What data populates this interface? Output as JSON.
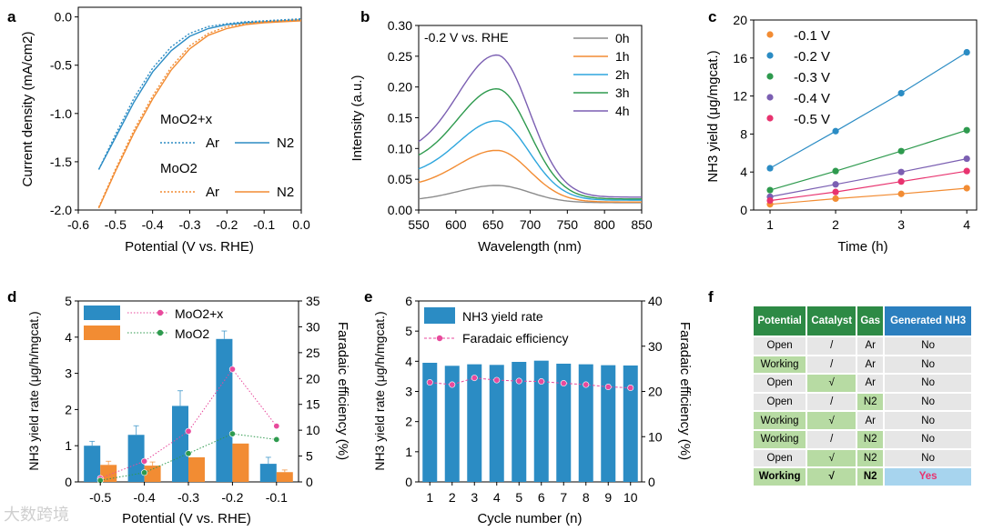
{
  "panel_labels": {
    "a": "a",
    "b": "b",
    "c": "c",
    "d": "d",
    "e": "e",
    "f": "f"
  },
  "chart_data": [
    {
      "panel": "a",
      "type": "line",
      "xlabel": "Potential (V vs. RHE)",
      "ylabel": "Current density (mA/cm2)",
      "xlim": [
        -0.6,
        0.0
      ],
      "ylim": [
        -2.0,
        0.1
      ],
      "xticks": [
        "-0.6",
        "-0.5",
        "-0.4",
        "-0.3",
        "-0.2",
        "-0.1",
        "0.0"
      ],
      "yticks": [
        "0.0",
        "-0.5",
        "-1.0",
        "-1.5",
        "-2.0"
      ],
      "legend": {
        "group1": "MoO2+x",
        "group2": "MoO2",
        "ar": "Ar",
        "n2": "N2"
      },
      "series": [
        {
          "name": "MoO2+x Ar",
          "color": "#2b8cc4",
          "dash": true,
          "x": [
            -0.545,
            -0.5,
            -0.45,
            -0.4,
            -0.35,
            -0.3,
            -0.25,
            -0.2,
            -0.15,
            -0.1,
            -0.05,
            0.0
          ],
          "y": [
            -1.58,
            -1.22,
            -0.84,
            -0.53,
            -0.31,
            -0.17,
            -0.1,
            -0.07,
            -0.05,
            -0.04,
            -0.03,
            -0.02
          ]
        },
        {
          "name": "MoO2+x N2",
          "color": "#2b8cc4",
          "dash": false,
          "x": [
            -0.545,
            -0.5,
            -0.45,
            -0.4,
            -0.35,
            -0.3,
            -0.25,
            -0.2,
            -0.15,
            -0.1,
            -0.05,
            0.0
          ],
          "y": [
            -1.58,
            -1.25,
            -0.88,
            -0.57,
            -0.35,
            -0.2,
            -0.12,
            -0.08,
            -0.06,
            -0.05,
            -0.04,
            -0.03
          ]
        },
        {
          "name": "MoO2 Ar",
          "color": "#f28c33",
          "dash": true,
          "x": [
            -0.545,
            -0.5,
            -0.45,
            -0.4,
            -0.35,
            -0.3,
            -0.25,
            -0.2,
            -0.15,
            -0.1,
            -0.05,
            0.0
          ],
          "y": [
            -1.97,
            -1.58,
            -1.17,
            -0.82,
            -0.52,
            -0.3,
            -0.17,
            -0.1,
            -0.07,
            -0.05,
            -0.04,
            -0.03
          ]
        },
        {
          "name": "MoO2 N2",
          "color": "#f28c33",
          "dash": false,
          "x": [
            -0.545,
            -0.5,
            -0.45,
            -0.4,
            -0.35,
            -0.3,
            -0.25,
            -0.2,
            -0.15,
            -0.1,
            -0.05,
            0.0
          ],
          "y": [
            -1.98,
            -1.6,
            -1.2,
            -0.85,
            -0.55,
            -0.33,
            -0.19,
            -0.12,
            -0.08,
            -0.06,
            -0.05,
            -0.04
          ]
        }
      ]
    },
    {
      "panel": "b",
      "type": "line",
      "annotation": "-0.2 V vs. RHE",
      "xlabel": "Wavelength (nm)",
      "ylabel": "Intensity (a.u.)",
      "xlim": [
        550,
        850
      ],
      "ylim": [
        0.0,
        0.3
      ],
      "xticks": [
        "550",
        "600",
        "650",
        "700",
        "750",
        "800",
        "850"
      ],
      "yticks": [
        "0.00",
        "0.05",
        "0.10",
        "0.15",
        "0.20",
        "0.25",
        "0.30"
      ],
      "series": [
        {
          "name": "0h",
          "color": "#8c8c8c",
          "peak": 0.04,
          "base": 0.015,
          "end": 0.012
        },
        {
          "name": "1h",
          "color": "#f28c33",
          "peak": 0.097,
          "base": 0.037,
          "end": 0.013
        },
        {
          "name": "2h",
          "color": "#2ea6dd",
          "peak": 0.145,
          "base": 0.055,
          "end": 0.016
        },
        {
          "name": "3h",
          "color": "#2e9a4e",
          "peak": 0.197,
          "base": 0.073,
          "end": 0.018
        },
        {
          "name": "4h",
          "color": "#7b5fb2",
          "peak": 0.252,
          "base": 0.09,
          "end": 0.021
        }
      ]
    },
    {
      "panel": "c",
      "type": "scatter",
      "xlabel": "Time (h)",
      "ylabel": "NH3 yield (μg/mgcat.)",
      "xlim": [
        0.75,
        4.15
      ],
      "ylim": [
        0,
        20
      ],
      "xticks": [
        "1",
        "2",
        "3",
        "4"
      ],
      "yticks": [
        "0",
        "4",
        "8",
        "12",
        "16",
        "20"
      ],
      "x": [
        1,
        2,
        3,
        4
      ],
      "series": [
        {
          "name": "-0.1 V",
          "color": "#f28c33",
          "values": [
            0.6,
            1.2,
            1.7,
            2.3
          ]
        },
        {
          "name": "-0.2 V",
          "color": "#2b8cc4",
          "values": [
            4.4,
            8.3,
            12.3,
            16.6
          ]
        },
        {
          "name": "-0.3 V",
          "color": "#2e9a4e",
          "values": [
            2.1,
            4.1,
            6.2,
            8.4
          ]
        },
        {
          "name": "-0.4 V",
          "color": "#7b5fb2",
          "values": [
            1.4,
            2.7,
            4.0,
            5.4
          ]
        },
        {
          "name": "-0.5 V",
          "color": "#e8336f",
          "values": [
            1.0,
            1.9,
            3.0,
            4.1
          ]
        }
      ]
    },
    {
      "panel": "d",
      "type": "bar",
      "xlabel": "Potential (V vs. RHE)",
      "ylabel": "NH3 yield rate (μg/h/mgcat.)",
      "y2label": "Faradaic efficiency (%)",
      "categories": [
        "-0.5",
        "-0.4",
        "-0.3",
        "-0.2",
        "-0.1"
      ],
      "ylim": [
        0,
        5
      ],
      "y2lim": [
        0,
        35
      ],
      "yticks": [
        "0",
        "1",
        "2",
        "3",
        "4",
        "5"
      ],
      "y2ticks": [
        "0",
        "5",
        "10",
        "15",
        "20",
        "25",
        "30",
        "35"
      ],
      "series": [
        {
          "name": "MoO2+x",
          "color": "#2b8cc4",
          "fe_color": "#e84a9c",
          "values": [
            1.0,
            1.3,
            2.1,
            3.95,
            0.5
          ],
          "errors": [
            0.12,
            0.25,
            0.42,
            0.22,
            0.18
          ],
          "fe": [
            0.7,
            4.0,
            9.8,
            21.8,
            10.8
          ]
        },
        {
          "name": "MoO2",
          "color": "#f28c33",
          "fe_color": "#2e9a4e",
          "values": [
            0.47,
            0.45,
            0.68,
            1.06,
            0.27
          ],
          "errors": [
            0.1,
            0.1,
            0.0,
            0.0,
            0.06
          ],
          "fe": [
            0.3,
            1.8,
            5.5,
            9.3,
            8.2
          ]
        }
      ]
    },
    {
      "panel": "e",
      "type": "bar",
      "xlabel": "Cycle number (n)",
      "ylabel": "NH3 yield rate (μg/h/mgcat.)",
      "y2label": "Faradaic efficiency (%)",
      "categories": [
        "1",
        "2",
        "3",
        "4",
        "5",
        "6",
        "7",
        "8",
        "9",
        "10"
      ],
      "ylim": [
        0,
        6
      ],
      "y2lim": [
        0,
        40
      ],
      "yticks": [
        "0",
        "1",
        "2",
        "3",
        "4",
        "5",
        "6"
      ],
      "y2ticks": [
        "0",
        "10",
        "20",
        "30",
        "40"
      ],
      "series": [
        {
          "name": "NH3 yield rate",
          "color": "#2b8cc4",
          "values": [
            3.95,
            3.85,
            3.9,
            3.88,
            3.98,
            4.02,
            3.92,
            3.9,
            3.87,
            3.86
          ]
        },
        {
          "name": "Faradaic efficiency",
          "color": "#e84a9c",
          "values": [
            22.0,
            21.5,
            23.0,
            22.5,
            22.3,
            22.2,
            21.8,
            21.5,
            21.0,
            20.8
          ]
        }
      ]
    }
  ],
  "table": {
    "headers": [
      "Potential",
      "Catalyst",
      "Gas",
      "Generated NH3"
    ],
    "rows": [
      {
        "potential": "Open",
        "catalyst": "/",
        "gas": "Ar",
        "generated": "No"
      },
      {
        "potential": "Working",
        "catalyst": "/",
        "gas": "Ar",
        "generated": "No"
      },
      {
        "potential": "Open",
        "catalyst": "√",
        "gas": "Ar",
        "generated": "No"
      },
      {
        "potential": "Open",
        "catalyst": "/",
        "gas": "N2",
        "generated": "No"
      },
      {
        "potential": "Working",
        "catalyst": "√",
        "gas": "Ar",
        "generated": "No"
      },
      {
        "potential": "Working",
        "catalyst": "/",
        "gas": "N2",
        "generated": "No"
      },
      {
        "potential": "Open",
        "catalyst": "√",
        "gas": "N2",
        "generated": "No"
      },
      {
        "potential": "Working",
        "catalyst": "√",
        "gas": "N2",
        "generated": "Yes"
      }
    ]
  },
  "watermark": "大数跨境"
}
